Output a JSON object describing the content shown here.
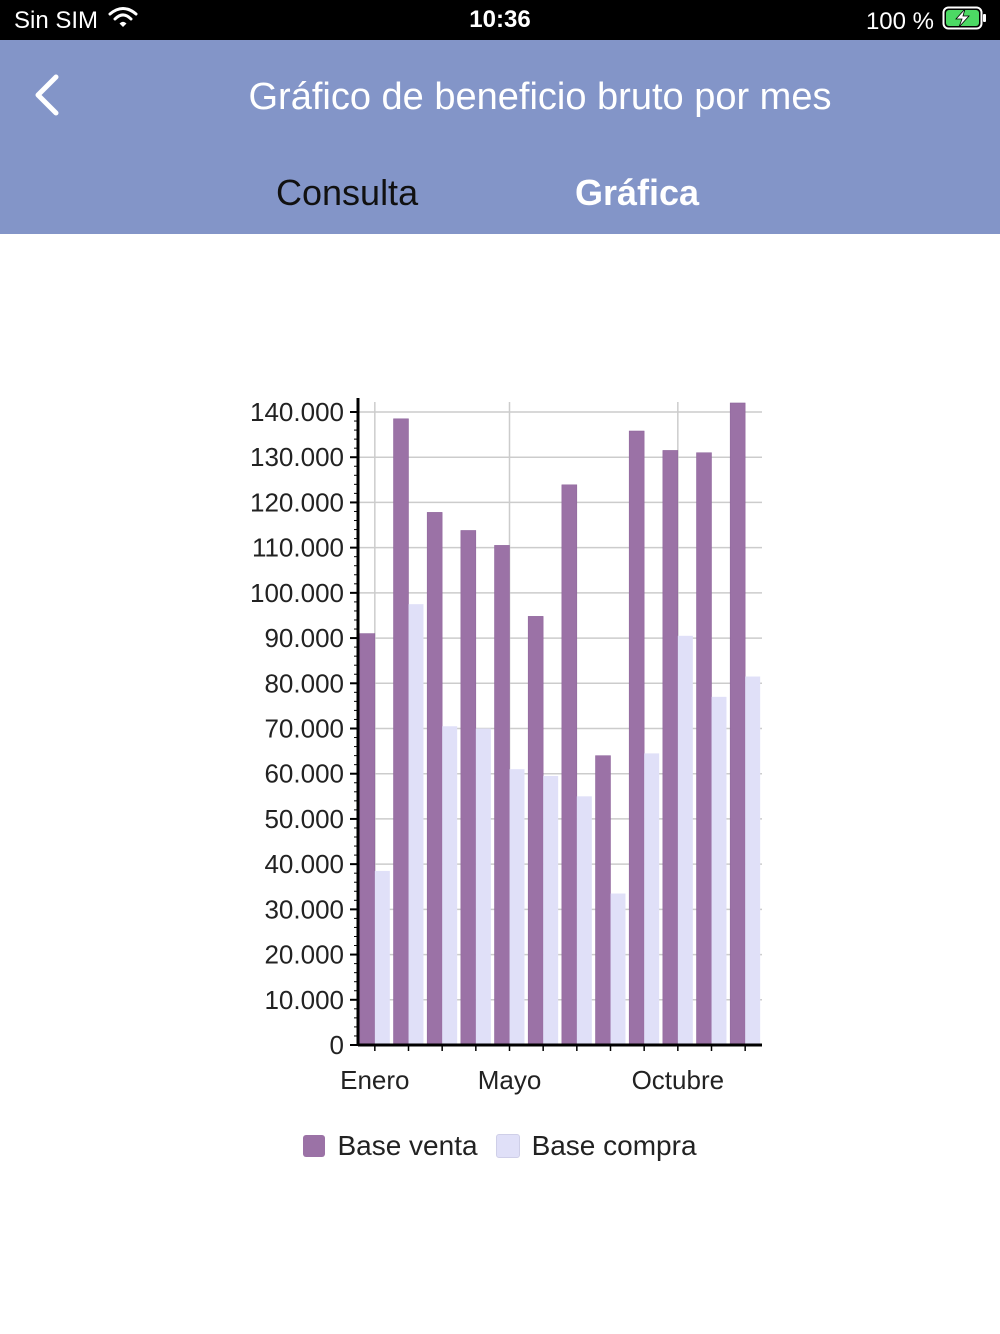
{
  "status_bar": {
    "carrier": "Sin SIM",
    "time": "10:36",
    "battery": "100 %"
  },
  "header": {
    "title": "Gráfico de beneficio bruto por mes",
    "back_icon": "chevron-left-icon"
  },
  "tabs": [
    {
      "label": "Consulta",
      "active": false
    },
    {
      "label": "Gráfica",
      "active": true
    }
  ],
  "colors": {
    "header_bg": "#8395c8",
    "venta": "#9b72a6",
    "compra": "#e0e0f8"
  },
  "chart_data": {
    "type": "bar",
    "categories": [
      "Enero",
      "",
      "",
      "",
      "Mayo",
      "",
      "",
      "",
      "",
      "Octubre",
      "",
      ""
    ],
    "series": [
      {
        "name": "Base venta",
        "values": [
          91000,
          138500,
          117800,
          113800,
          110500,
          94800,
          123900,
          64000,
          135800,
          131500,
          131000,
          142000
        ]
      },
      {
        "name": "Base compra",
        "values": [
          38500,
          97500,
          70500,
          70000,
          61000,
          59500,
          55000,
          33500,
          64500,
          90500,
          77000,
          81500
        ]
      }
    ],
    "yticks": [
      "0",
      "10.000",
      "20.000",
      "30.000",
      "40.000",
      "50.000",
      "60.000",
      "70.000",
      "80.000",
      "90.000",
      "100.000",
      "110.000",
      "120.000",
      "130.000",
      "140.000"
    ],
    "ylim": [
      0,
      140000
    ],
    "grid": true,
    "legend": "bottom"
  }
}
